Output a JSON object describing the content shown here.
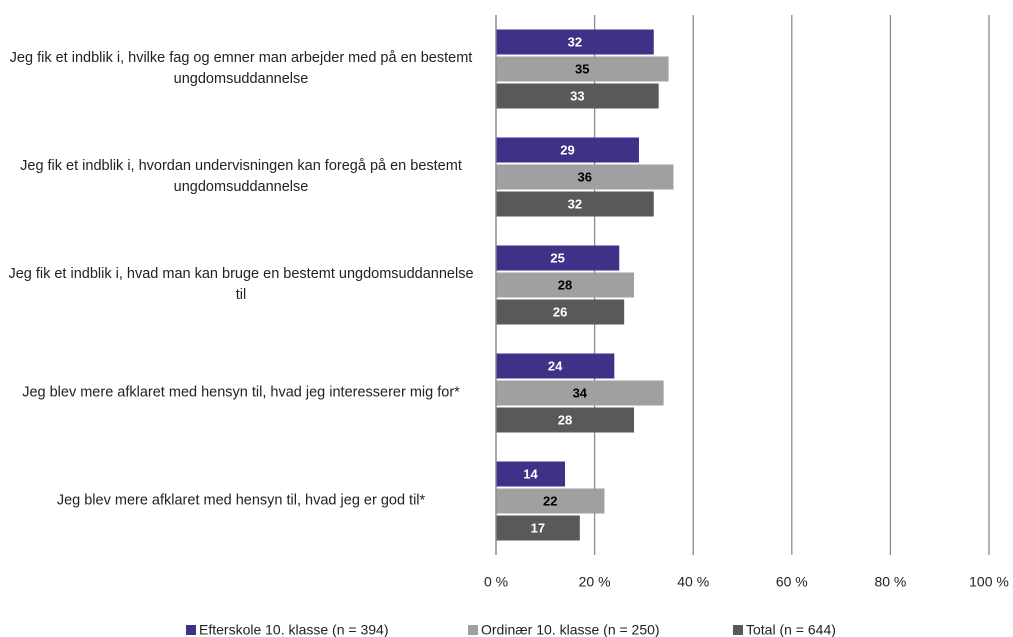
{
  "chart_data": {
    "type": "hbar",
    "categories": [
      "Jeg fik et indblik i, hvilke fag og emner man arbejder med på en bestemt ungdomsuddannelse",
      "Jeg fik et indblik i, hvordan undervisningen kan foregå på en bestemt ungdomsuddannelse",
      "Jeg fik et indblik i, hvad man kan bruge en bestemt ungdomsuddannelse til",
      "Jeg blev mere afklaret med hensyn til, hvad jeg interesserer mig for*",
      "Jeg blev mere afklaret med hensyn til, hvad jeg er god til*"
    ],
    "series": [
      {
        "name": "Efterskole 10. klasse (n = 394)",
        "color": "#3e3188",
        "label_color": "#ffffff",
        "values": [
          32,
          29,
          25,
          24,
          14
        ]
      },
      {
        "name": "Ordinær 10. klasse (n = 250)",
        "color": "#a0a0a0",
        "label_color": "#000000",
        "values": [
          35,
          36,
          28,
          34,
          22
        ]
      },
      {
        "name": "Total (n = 644)",
        "color": "#595959",
        "label_color": "#ffffff",
        "values": [
          33,
          32,
          26,
          28,
          17
        ]
      }
    ],
    "xlim": [
      0,
      100
    ],
    "xticks": [
      {
        "value": 0,
        "label": "0 %"
      },
      {
        "value": 20,
        "label": "20 %"
      },
      {
        "value": 40,
        "label": "40 %"
      },
      {
        "value": 60,
        "label": "60 %"
      },
      {
        "value": 80,
        "label": "80 %"
      },
      {
        "value": 100,
        "label": "100 %"
      }
    ],
    "grid": true
  }
}
